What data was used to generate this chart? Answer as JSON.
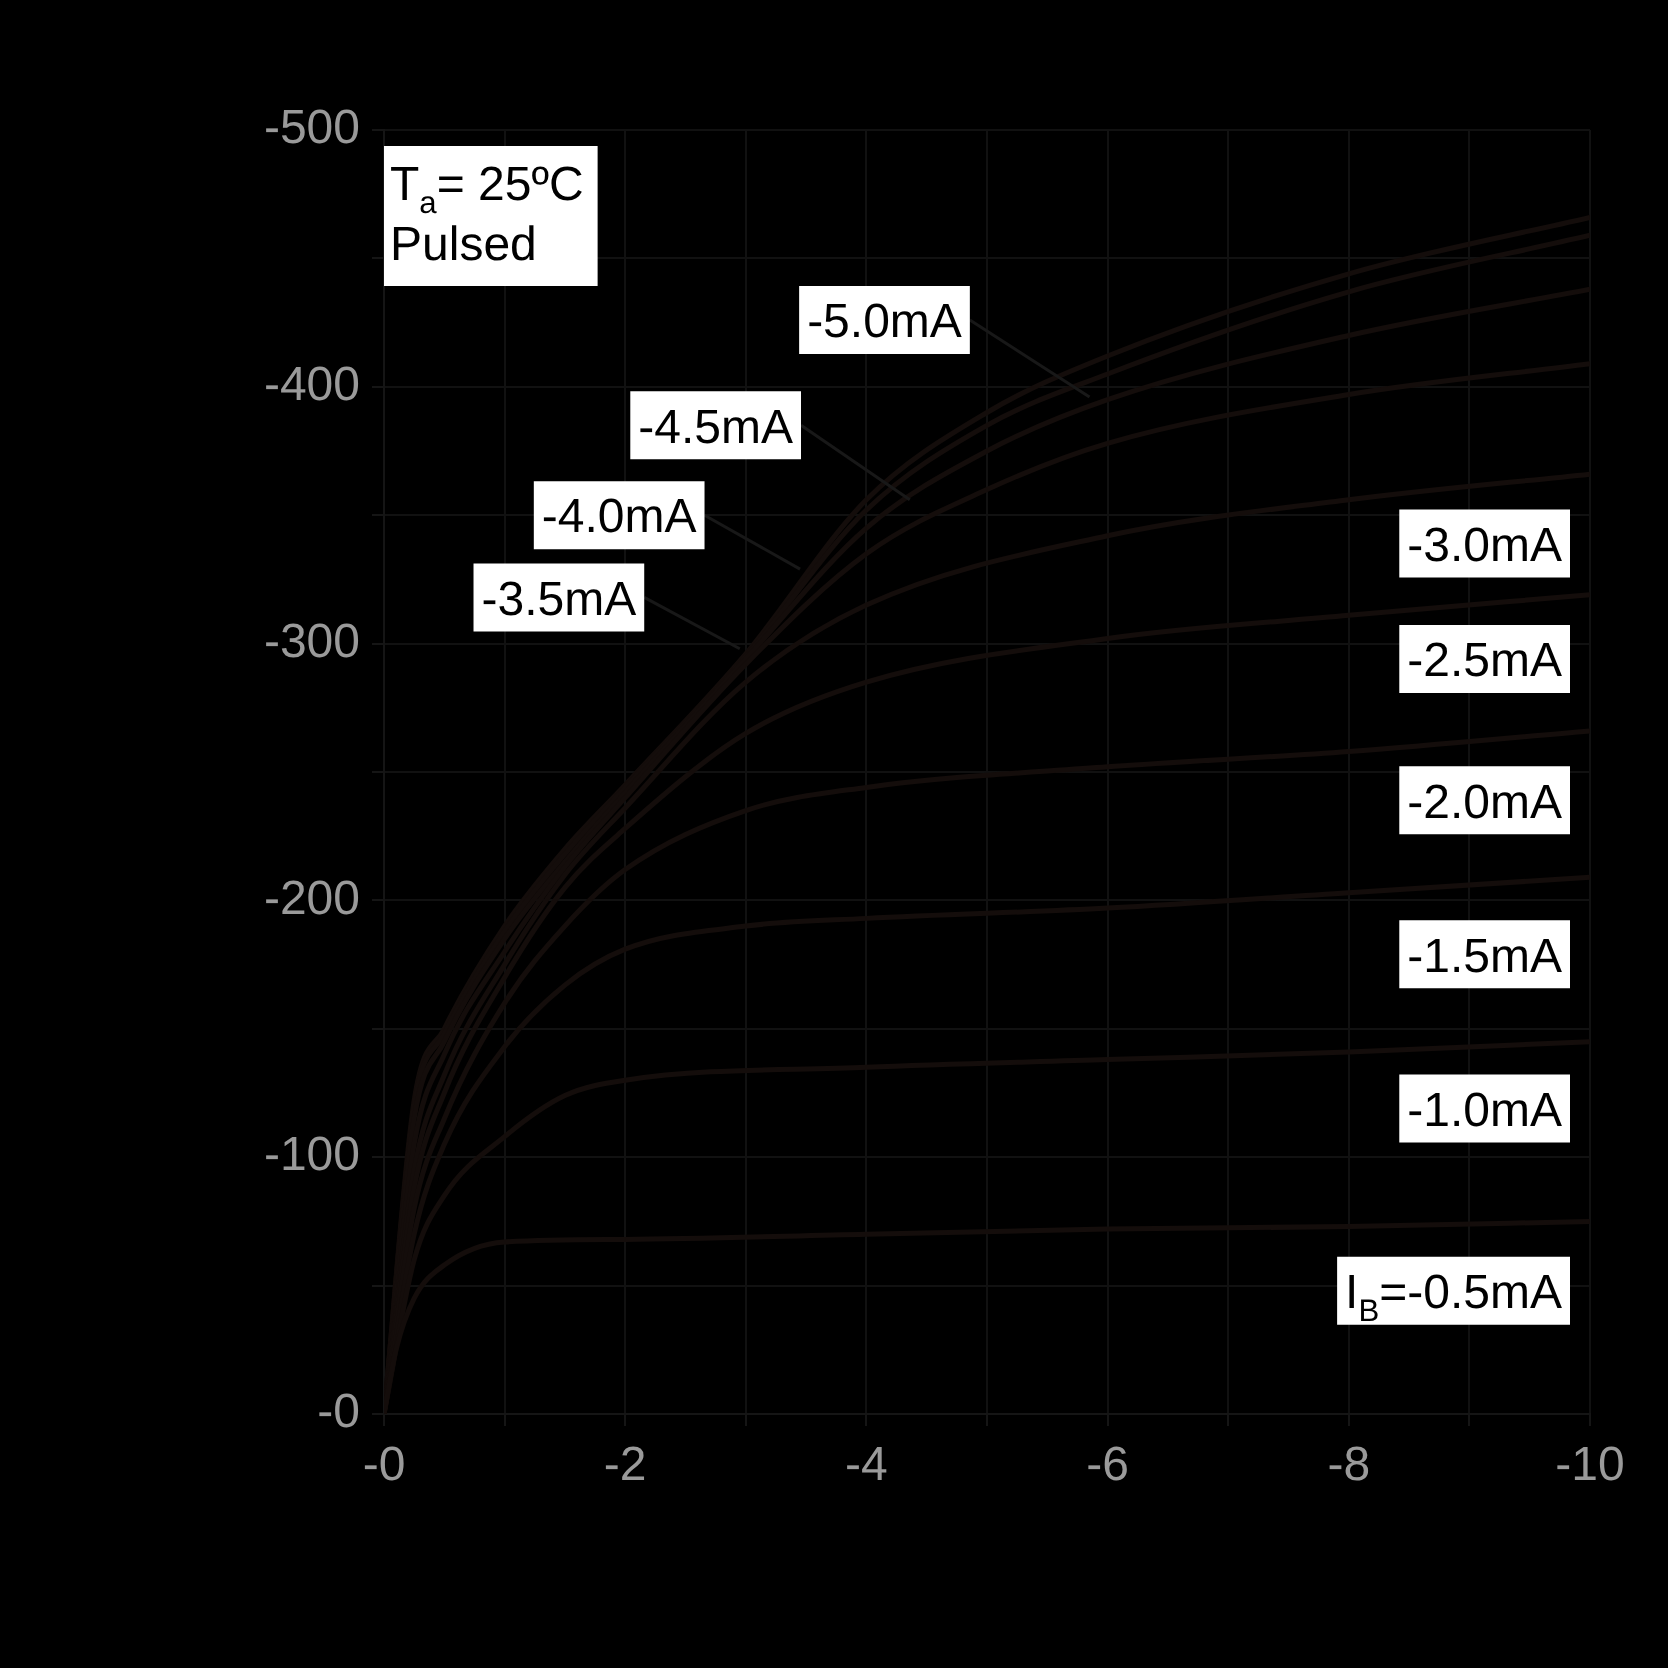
{
  "chart_data": {
    "type": "line",
    "marker": "none",
    "line_style": "solid",
    "grid": true,
    "legend": false,
    "xlim": [
      0,
      -10
    ],
    "ylim": [
      0,
      -500
    ],
    "xticks": [
      {
        "value": 0,
        "label": "-0"
      },
      {
        "value": -1,
        "label": null
      },
      -2,
      {
        "value": -3,
        "label": null
      },
      -4,
      {
        "value": -5,
        "label": null
      },
      -6,
      {
        "value": -7,
        "label": null
      },
      -8,
      {
        "value": -9,
        "label": null
      },
      -10
    ],
    "yticks": [
      {
        "value": 0,
        "label": "-0"
      },
      {
        "value": -50,
        "label": null
      },
      -100,
      {
        "value": -150,
        "label": null
      },
      -200,
      {
        "value": -250,
        "label": null
      },
      -300,
      {
        "value": -350,
        "label": null
      },
      -400,
      {
        "value": -450,
        "label": null
      },
      -500
    ],
    "annotations": [
      "T$_{a}$= 25ºC",
      "Pulsed"
    ],
    "series": [
      {
        "name": "I$_{B}$=-0.5mA",
        "color": "#140d0b",
        "x": [
          0,
          -0.1,
          -0.25,
          -0.5,
          -1,
          -2,
          -4,
          -6,
          -8,
          -10
        ],
        "values": [
          0,
          -25,
          -45,
          -58,
          -67,
          -68,
          -70,
          -72,
          -73,
          -75
        ]
      },
      {
        "name": "-1.0mA",
        "color": "#140d0b",
        "x": [
          0,
          -0.25,
          -0.5,
          -1,
          -1.5,
          -2,
          -4,
          -6,
          -8,
          -10
        ],
        "values": [
          0,
          -60,
          -85,
          -108,
          -124,
          -130,
          -135,
          -138,
          -141,
          -145
        ]
      },
      {
        "name": "-1.5mA",
        "color": "#140d0b",
        "x": [
          0,
          -0.25,
          -0.5,
          -1,
          -1.5,
          -2,
          -3,
          -4,
          -6,
          -8,
          -10
        ],
        "values": [
          0,
          -70,
          -105,
          -143,
          -167,
          -181,
          -190,
          -193,
          -197,
          -203,
          -209
        ]
      },
      {
        "name": "-2.0mA",
        "color": "#140d0b",
        "x": [
          0,
          -0.25,
          -0.5,
          -1,
          -1.5,
          -2,
          -3,
          -4,
          -6,
          -8,
          -10
        ],
        "values": [
          0,
          -80,
          -115,
          -160,
          -190,
          -212,
          -235,
          -244,
          -252,
          -258,
          -266
        ]
      },
      {
        "name": "-2.5mA",
        "color": "#140d0b",
        "x": [
          0,
          -0.25,
          -0.5,
          -1,
          -1.5,
          -2,
          -3,
          -4,
          -6,
          -8,
          -10
        ],
        "values": [
          0,
          -88,
          -125,
          -170,
          -205,
          -228,
          -265,
          -285,
          -302,
          -311,
          -319
        ]
      },
      {
        "name": "-3.0mA",
        "color": "#140d0b",
        "x": [
          0,
          -0.25,
          -0.5,
          -1,
          -1.5,
          -2,
          -3,
          -4,
          -6,
          -8,
          -10
        ],
        "values": [
          0,
          -95,
          -132,
          -175,
          -210,
          -236,
          -285,
          -315,
          -342,
          -356,
          -366
        ]
      },
      {
        "name": "-3.5mA",
        "color": "#140d0b",
        "x": [
          0,
          -0.25,
          -0.5,
          -1,
          -1.5,
          -2,
          -3,
          -4,
          -5,
          -6,
          -8,
          -10
        ],
        "values": [
          0,
          -105,
          -140,
          -180,
          -213,
          -240,
          -292,
          -335,
          -360,
          -378,
          -397,
          -409
        ]
      },
      {
        "name": "-4.0mA",
        "color": "#140d0b",
        "x": [
          0,
          -0.25,
          -0.5,
          -1,
          -1.5,
          -2,
          -3,
          -4,
          -5,
          -6,
          -8,
          -10
        ],
        "values": [
          0,
          -115,
          -145,
          -185,
          -215,
          -242,
          -294,
          -345,
          -375,
          -395,
          -420,
          -438
        ]
      },
      {
        "name": "-4.5mA",
        "color": "#140d0b",
        "x": [
          0,
          -0.25,
          -0.5,
          -1,
          -1.5,
          -2,
          -3,
          -4,
          -5,
          -6,
          -8,
          -10
        ],
        "values": [
          0,
          -120,
          -148,
          -188,
          -218,
          -244,
          -295,
          -352,
          -385,
          -405,
          -437,
          -459
        ]
      },
      {
        "name": "-5.0mA",
        "color": "#140d0b",
        "x": [
          0,
          -0.25,
          -0.5,
          -1,
          -1.5,
          -2,
          -3,
          -4,
          -5,
          -6,
          -8,
          -10
        ],
        "values": [
          0,
          -122,
          -150,
          -190,
          -220,
          -245,
          -296,
          -356,
          -390,
          -412,
          -444,
          -466
        ]
      }
    ]
  }
}
